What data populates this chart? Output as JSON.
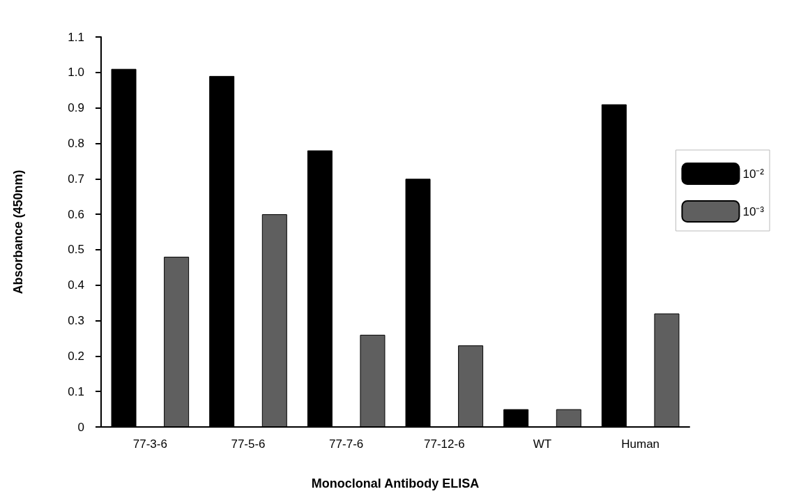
{
  "chart_data": {
    "type": "bar",
    "xlabel": "Monoclonal Antibody ELISA",
    "ylabel": "Absorbance (450nm)",
    "categories": [
      "77-3-6",
      "77-5-6",
      "77-7-6",
      "77-12-6",
      "WT",
      "Human"
    ],
    "series": [
      {
        "name": "10⁻²",
        "color": "#000000",
        "values": [
          1.01,
          0.99,
          0.78,
          0.7,
          0.05,
          0.91
        ]
      },
      {
        "name": "10⁻³",
        "color": "#5f5f5f",
        "values": [
          0.48,
          0.6,
          0.26,
          0.23,
          0.05,
          0.32
        ]
      }
    ],
    "ylim": [
      0,
      1.1
    ],
    "yticks": [
      0,
      0.1,
      0.2,
      0.3,
      0.4,
      0.5,
      0.6,
      0.7,
      0.8,
      0.9,
      {
        "value": 1,
        "label": "1.0"
      },
      1.1
    ],
    "grid": false,
    "legend": "right"
  }
}
